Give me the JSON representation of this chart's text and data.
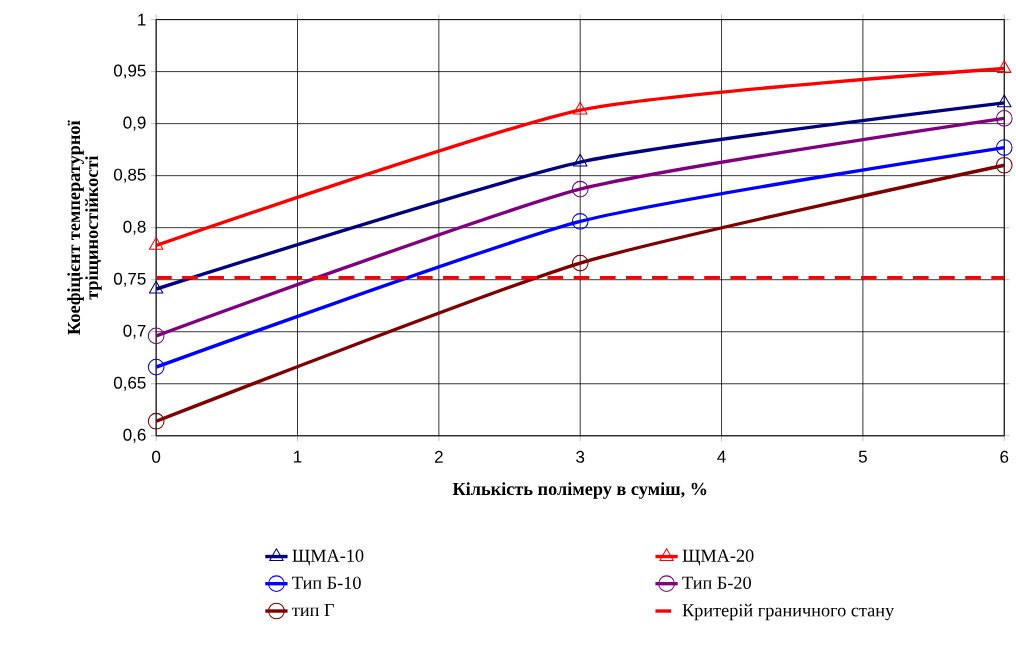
{
  "chart_data": {
    "type": "line",
    "xlabel": "Кількість полімеру в суміш, %",
    "ylabel": "Коефіцієнт температурної тріщиностійкості",
    "x": [
      0,
      3,
      6
    ],
    "series": [
      {
        "name": "ЩМА-10",
        "color": "#000080",
        "marker": "triangle",
        "values": [
          0.741,
          0.863,
          0.92
        ]
      },
      {
        "name": "ЩМА-20",
        "color": "#ff0000",
        "marker": "triangle",
        "values": [
          0.783,
          0.913,
          0.953
        ]
      },
      {
        "name": "Тип Б-10",
        "color": "#0000ff",
        "marker": "circle",
        "values": [
          0.666,
          0.806,
          0.877
        ]
      },
      {
        "name": "Тип Б-20",
        "color": "#800080",
        "marker": "circle",
        "values": [
          0.696,
          0.837,
          0.905
        ]
      },
      {
        "name": "тип Г",
        "color": "#800000",
        "marker": "circle",
        "values": [
          0.614,
          0.766,
          0.86
        ]
      },
      {
        "name": "Критерій граничного стану",
        "color": "#ff0000",
        "marker": "none",
        "line_style": "dashed",
        "x": [
          0,
          6
        ],
        "values": [
          0.752,
          0.752
        ]
      }
    ],
    "xlim": [
      0,
      6
    ],
    "xticks": [
      0,
      1,
      2,
      3,
      4,
      5,
      6
    ],
    "ylim": [
      0.6,
      1
    ],
    "yticks": [
      {
        "value": 0.6,
        "label": "0,6"
      },
      {
        "value": 0.65,
        "label": "0,65"
      },
      {
        "value": 0.7,
        "label": "0,7"
      },
      {
        "value": 0.75,
        "label": "0,75"
      },
      {
        "value": 0.8,
        "label": "0,8"
      },
      {
        "value": 0.85,
        "label": "0,85"
      },
      {
        "value": 0.9,
        "label": "0,9"
      },
      {
        "value": 0.95,
        "label": "0,95"
      },
      {
        "value": 1,
        "label": "1"
      }
    ],
    "grid": true,
    "legend": "bottom"
  }
}
